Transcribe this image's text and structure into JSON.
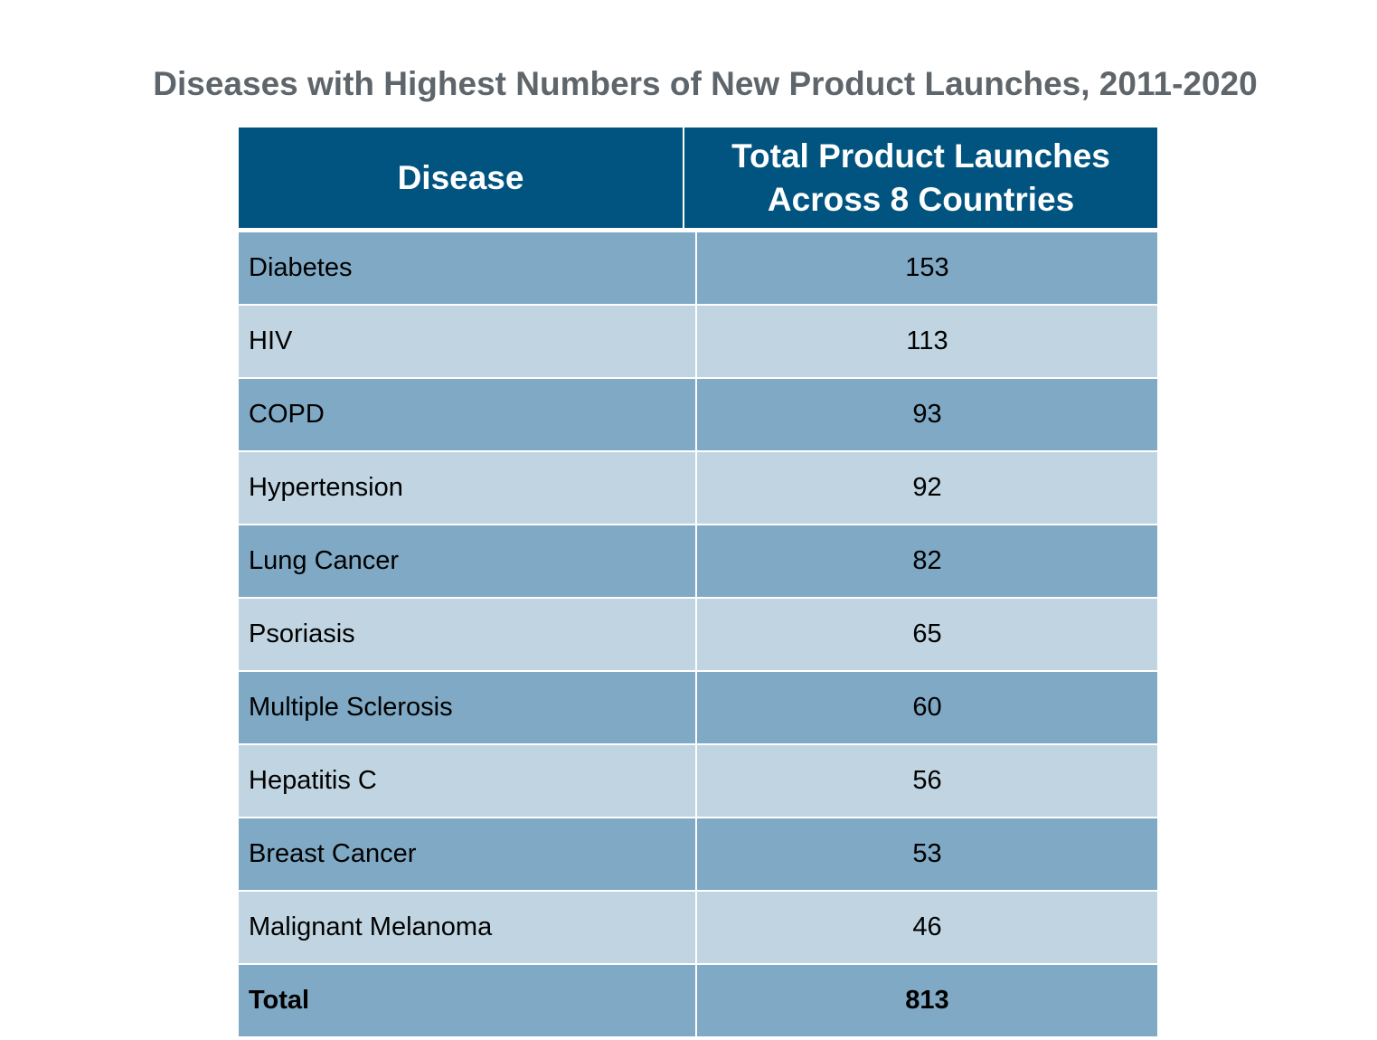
{
  "chart_data": {
    "type": "table",
    "title": "Diseases with Highest Numbers of New Product Launches, 2011-2020",
    "columns": [
      "Disease",
      "Total Product Launches Across 8 Countries"
    ],
    "rows": [
      {
        "disease": "Diabetes",
        "value": "153"
      },
      {
        "disease": "HIV",
        "value": "113"
      },
      {
        "disease": "COPD",
        "value": "93"
      },
      {
        "disease": "Hypertension",
        "value": "92"
      },
      {
        "disease": "Lung Cancer",
        "value": "82"
      },
      {
        "disease": "Psoriasis",
        "value": "65"
      },
      {
        "disease": "Multiple Sclerosis",
        "value": "60"
      },
      {
        "disease": "Hepatitis C",
        "value": "56"
      },
      {
        "disease": "Breast Cancer",
        "value": "53"
      },
      {
        "disease": "Malignant Melanoma",
        "value": "46"
      }
    ],
    "total": {
      "label": "Total",
      "value": "813"
    },
    "colors": {
      "header": "#00547f",
      "row_dark": "#7fa9c4",
      "row_light": "#c0d5e1",
      "title": "#5f666b"
    }
  }
}
